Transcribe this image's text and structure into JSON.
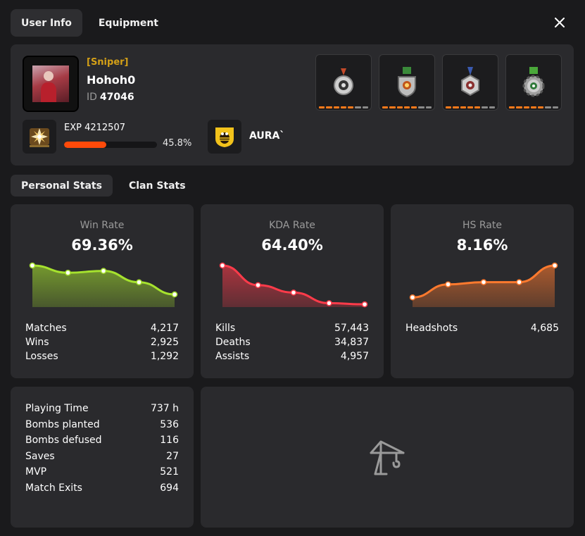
{
  "tabs_top": [
    "User Info",
    "Equipment"
  ],
  "profile": {
    "role": "[Sniper]",
    "name": "Hohoh0",
    "id_label": "ID",
    "id_value": "47046",
    "exp_label": "EXP 4212507",
    "exp_percent_text": "45.8%",
    "exp_fraction": 0.458,
    "clan_name": "AURA`"
  },
  "medals": [
    {
      "name": "medal-red-ribbon",
      "ribbon": "#c44a2a",
      "filled": 5,
      "total": 7
    },
    {
      "name": "medal-green-ribbon",
      "ribbon": "#3a8a3a",
      "filled": 5,
      "total": 7
    },
    {
      "name": "medal-blue-ribbon",
      "ribbon": "#3a5ab0",
      "filled": 5,
      "total": 7
    },
    {
      "name": "medal-gear",
      "ribbon": "#4aa83a",
      "filled": 5,
      "total": 7
    }
  ],
  "tabs_stats": [
    "Personal Stats",
    "Clan Stats"
  ],
  "stat_cards": [
    {
      "title": "Win Rate",
      "value": "69.36%",
      "color": "#a6e22e",
      "series": [
        9.2,
        7.6,
        8.0,
        5.5,
        2.8
      ],
      "rows": [
        [
          "Matches",
          "4,217"
        ],
        [
          "Wins",
          "2,925"
        ],
        [
          "Losses",
          "1,292"
        ]
      ]
    },
    {
      "title": "KDA Rate",
      "value": "64.40%",
      "color": "#ff3b4a",
      "series": [
        18.0,
        9.5,
        6.3,
        1.7,
        1.2
      ],
      "rows": [
        [
          "Kills",
          "57,443"
        ],
        [
          "Deaths",
          "34,837"
        ],
        [
          "Assists",
          "4,957"
        ]
      ]
    },
    {
      "title": "HS Rate",
      "value": "8.16%",
      "color": "#ff7a2e",
      "series": [
        3.5,
        8.2,
        9.0,
        9.0,
        15.0
      ],
      "rows": [
        [
          "Headshots",
          "4,685"
        ]
      ]
    }
  ],
  "misc": [
    [
      "Playing Time",
      "737 h"
    ],
    [
      "Bombs planted",
      "536"
    ],
    [
      "Bombs defused",
      "116"
    ],
    [
      "Saves",
      "27"
    ],
    [
      "MVP",
      "521"
    ],
    [
      "Match Exits",
      "694"
    ]
  ],
  "colors": {
    "accent": "#ff4a0a",
    "gold": "#d4a017",
    "panel": "#2a2a2d"
  }
}
